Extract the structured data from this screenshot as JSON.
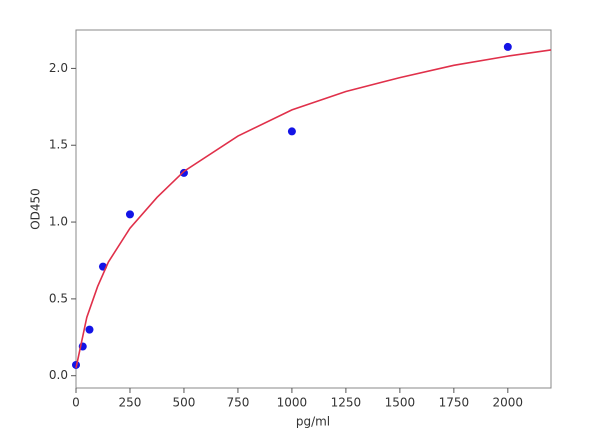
{
  "chart_data": {
    "type": "scatter",
    "xlabel": "pg/ml",
    "ylabel": "OD450",
    "xlim": [
      0,
      2200
    ],
    "ylim": [
      -0.08,
      2.25
    ],
    "xticks": [
      0,
      250,
      500,
      750,
      1000,
      1250,
      1500,
      1750,
      2000
    ],
    "yticks": [
      {
        "value": 0,
        "label": "0.0"
      },
      0.5,
      {
        "value": 1,
        "label": "1.0"
      },
      1.5,
      {
        "value": 2,
        "label": "2.0"
      }
    ],
    "series": [
      {
        "style": "markers",
        "color": "#1414e6",
        "x": [
          0,
          31.25,
          62.5,
          125,
          250,
          500,
          1000,
          2000
        ],
        "values": [
          0.07,
          0.19,
          0.3,
          0.71,
          1.05,
          1.32,
          1.59,
          2.14
        ]
      },
      {
        "style": "line",
        "color": "#e0304a",
        "x": [
          0,
          50,
          100,
          150,
          250,
          375,
          500,
          750,
          1000,
          1250,
          1500,
          1750,
          2000,
          2200
        ],
        "values": [
          0.05,
          0.38,
          0.58,
          0.74,
          0.96,
          1.16,
          1.33,
          1.56,
          1.73,
          1.85,
          1.94,
          2.02,
          2.08,
          2.12
        ]
      }
    ]
  }
}
